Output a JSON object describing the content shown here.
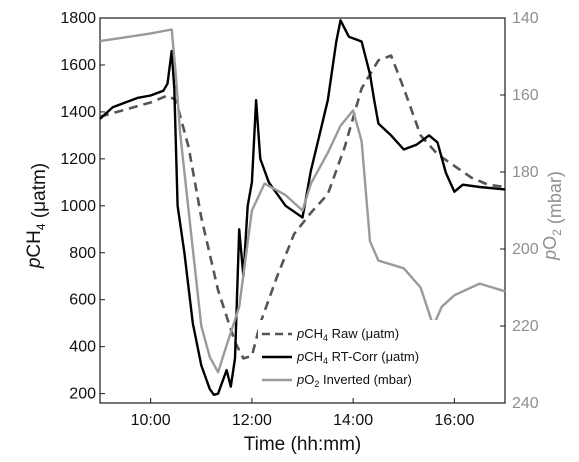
{
  "chart_data": {
    "type": "line",
    "title": "",
    "xlabel": "Time (hh:mm)",
    "ylabel_left": {
      "prefix": "p",
      "base": "CH",
      "sub": "4",
      "unit": " (μatm)"
    },
    "ylabel_right": {
      "prefix": "p",
      "base": "O",
      "sub": "2",
      "unit": " (mbar)"
    },
    "xlim": [
      "09:00",
      "17:00"
    ],
    "ylim_left": [
      160,
      1800
    ],
    "ylim_right": [
      140,
      240
    ],
    "right_axis_inverted": true,
    "x_ticks": [
      "10:00",
      "12:00",
      "14:00",
      "16:00"
    ],
    "y_ticks_left": [
      200,
      400,
      600,
      800,
      1000,
      1200,
      1400,
      1600,
      1800
    ],
    "y_ticks_right": [
      140,
      160,
      180,
      200,
      220,
      240
    ],
    "grid": false,
    "legend_position": "bottom-center",
    "series": [
      {
        "name": "pCH4 Raw (μatm)",
        "legend": {
          "prefix": "p",
          "base": "CH",
          "sub": "4",
          "rest": " Raw (μatm)"
        },
        "axis": "left",
        "color": "#555555",
        "style": "dashed",
        "points": [
          [
            "09:00",
            1380
          ],
          [
            "09:30",
            1410
          ],
          [
            "10:00",
            1440
          ],
          [
            "10:20",
            1470
          ],
          [
            "10:30",
            1450
          ],
          [
            "10:45",
            1250
          ],
          [
            "11:00",
            950
          ],
          [
            "11:20",
            640
          ],
          [
            "11:40",
            420
          ],
          [
            "11:50",
            350
          ],
          [
            "12:00",
            360
          ],
          [
            "12:10",
            500
          ],
          [
            "12:30",
            700
          ],
          [
            "12:50",
            880
          ],
          [
            "13:10",
            970
          ],
          [
            "13:30",
            1050
          ],
          [
            "13:50",
            1250
          ],
          [
            "14:10",
            1500
          ],
          [
            "14:30",
            1620
          ],
          [
            "14:45",
            1640
          ],
          [
            "15:00",
            1500
          ],
          [
            "15:20",
            1300
          ],
          [
            "15:40",
            1220
          ],
          [
            "16:00",
            1170
          ],
          [
            "16:20",
            1120
          ],
          [
            "16:40",
            1090
          ],
          [
            "17:00",
            1080
          ]
        ]
      },
      {
        "name": "pCH4 RT-Corr (μatm)",
        "legend": {
          "prefix": "p",
          "base": "CH",
          "sub": "4",
          "rest": " RT-Corr (μatm)"
        },
        "axis": "left",
        "color": "#000000",
        "style": "solid",
        "points": [
          [
            "09:00",
            1370
          ],
          [
            "09:15",
            1420
          ],
          [
            "09:30",
            1440
          ],
          [
            "09:45",
            1460
          ],
          [
            "10:00",
            1470
          ],
          [
            "10:15",
            1490
          ],
          [
            "10:20",
            1520
          ],
          [
            "10:25",
            1660
          ],
          [
            "10:28",
            1500
          ],
          [
            "10:32",
            1000
          ],
          [
            "10:40",
            800
          ],
          [
            "10:50",
            500
          ],
          [
            "11:00",
            320
          ],
          [
            "11:10",
            220
          ],
          [
            "11:15",
            195
          ],
          [
            "11:20",
            200
          ],
          [
            "11:30",
            300
          ],
          [
            "11:35",
            230
          ],
          [
            "11:40",
            350
          ],
          [
            "11:45",
            900
          ],
          [
            "11:50",
            700
          ],
          [
            "11:55",
            1000
          ],
          [
            "12:00",
            1100
          ],
          [
            "12:05",
            1450
          ],
          [
            "12:08",
            1300
          ],
          [
            "12:10",
            1200
          ],
          [
            "12:20",
            1100
          ],
          [
            "12:40",
            1000
          ],
          [
            "13:00",
            950
          ],
          [
            "13:10",
            1150
          ],
          [
            "13:20",
            1300
          ],
          [
            "13:30",
            1450
          ],
          [
            "13:40",
            1700
          ],
          [
            "13:45",
            1790
          ],
          [
            "13:55",
            1720
          ],
          [
            "14:10",
            1700
          ],
          [
            "14:20",
            1560
          ],
          [
            "14:25",
            1450
          ],
          [
            "14:30",
            1350
          ],
          [
            "14:45",
            1300
          ],
          [
            "15:00",
            1240
          ],
          [
            "15:15",
            1260
          ],
          [
            "15:30",
            1300
          ],
          [
            "15:40",
            1270
          ],
          [
            "15:50",
            1140
          ],
          [
            "16:00",
            1060
          ],
          [
            "16:10",
            1090
          ],
          [
            "16:30",
            1080
          ],
          [
            "17:00",
            1070
          ]
        ]
      },
      {
        "name": "pO2 Inverted (mbar)",
        "legend": {
          "prefix": "p",
          "base": "O",
          "sub": "2",
          "rest": " Inverted (mbar)"
        },
        "axis": "right",
        "color": "#9a9a9a",
        "style": "solid",
        "points": [
          [
            "09:00",
            146
          ],
          [
            "09:30",
            145
          ],
          [
            "10:00",
            144
          ],
          [
            "10:25",
            143
          ],
          [
            "10:30",
            155
          ],
          [
            "10:35",
            170
          ],
          [
            "10:50",
            200
          ],
          [
            "11:00",
            220
          ],
          [
            "11:10",
            228
          ],
          [
            "11:20",
            232
          ],
          [
            "11:30",
            225
          ],
          [
            "11:45",
            215
          ],
          [
            "12:00",
            190
          ],
          [
            "12:15",
            183
          ],
          [
            "12:40",
            186
          ],
          [
            "13:00",
            190
          ],
          [
            "13:10",
            183
          ],
          [
            "13:30",
            175
          ],
          [
            "13:45",
            168
          ],
          [
            "14:00",
            164
          ],
          [
            "14:10",
            172
          ],
          [
            "14:20",
            198
          ],
          [
            "14:30",
            203
          ],
          [
            "15:00",
            205
          ],
          [
            "15:20",
            210
          ],
          [
            "15:35",
            220
          ],
          [
            "15:45",
            215
          ],
          [
            "16:00",
            212
          ],
          [
            "16:30",
            209
          ],
          [
            "17:00",
            211
          ]
        ]
      }
    ]
  }
}
